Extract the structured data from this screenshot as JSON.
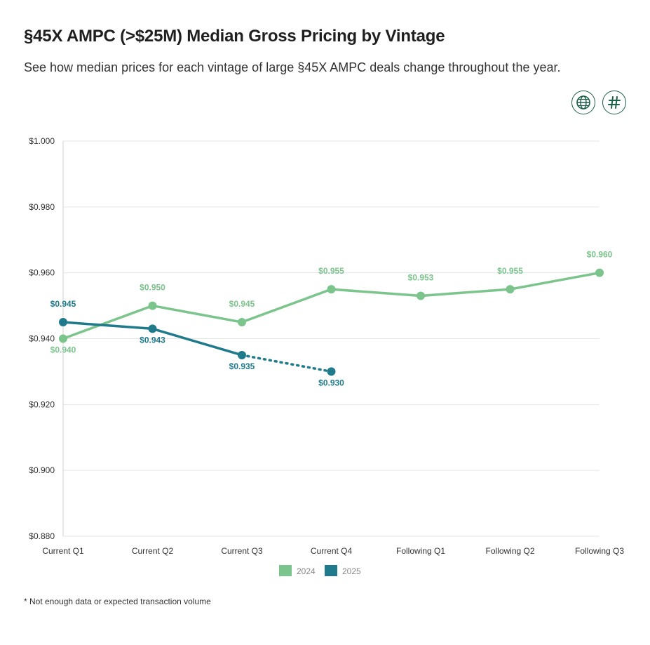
{
  "header": {
    "title": "§45X AMPC (>$25M) Median Gross Pricing by Vintage",
    "subtitle": "See how median prices for each vintage of large §45X AMPC deals change throughout the year."
  },
  "toolbar": {
    "globe_icon": "globe-icon",
    "hash_icon": "hash-icon"
  },
  "footnote": "* Not enough data or expected transaction volume",
  "chart_data": {
    "type": "line",
    "title": "§45X AMPC (>$25M) Median Gross Pricing by Vintage",
    "xlabel": "",
    "ylabel": "",
    "categories": [
      "Current Q1",
      "Current Q2",
      "Current Q3",
      "Current Q4",
      "Following Q1",
      "Following Q2",
      "Following Q3"
    ],
    "ylim": [
      0.88,
      1.0
    ],
    "yticks": [
      0.88,
      0.9,
      0.92,
      0.94,
      0.96,
      0.98,
      1.0
    ],
    "ytick_labels": [
      "$0.880",
      "$0.900",
      "$0.920",
      "$0.940",
      "$0.960",
      "$0.980",
      "$1.000"
    ],
    "grid": true,
    "legend_position": "bottom-center",
    "series": [
      {
        "name": "2024",
        "color": "#7bc48c",
        "values": [
          0.94,
          0.95,
          0.945,
          0.955,
          0.953,
          0.955,
          0.96
        ],
        "labels": [
          "$0.940",
          "$0.950",
          "$0.945",
          "$0.955",
          "$0.953",
          "$0.955",
          "$0.960"
        ],
        "label_placement": [
          "below",
          "above",
          "above",
          "above",
          "above",
          "above",
          "above"
        ],
        "dashed_from_index": null
      },
      {
        "name": "2025",
        "color": "#1f7a8c",
        "values": [
          0.945,
          0.943,
          0.935,
          0.93,
          null,
          null,
          null
        ],
        "labels": [
          "$0.945",
          "$0.943",
          "$0.935",
          "$0.930",
          null,
          null,
          null
        ],
        "label_placement": [
          "above",
          "below",
          "below",
          "below",
          null,
          null,
          null
        ],
        "dashed_from_index": 2
      }
    ]
  }
}
